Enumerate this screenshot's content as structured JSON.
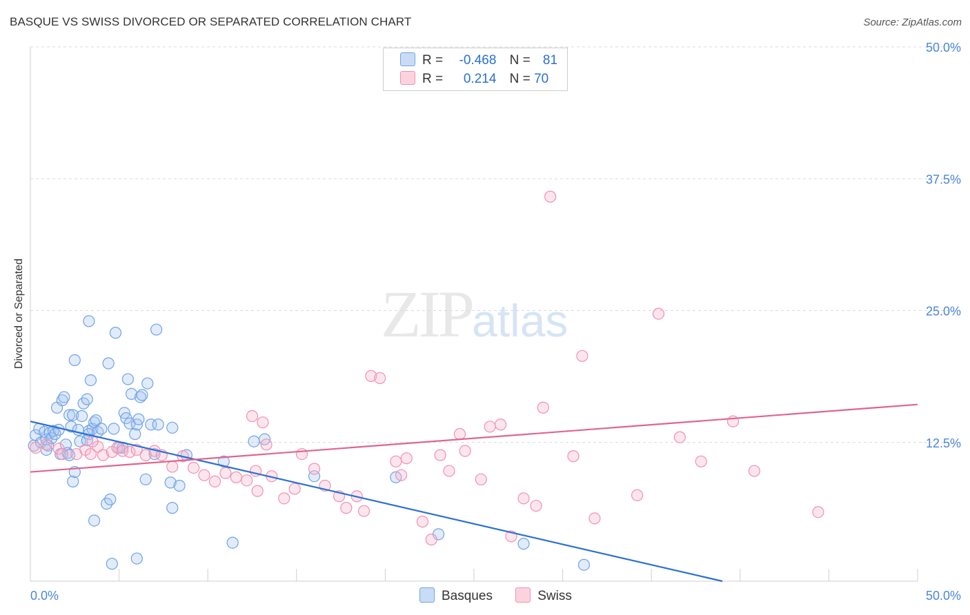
{
  "title": "BASQUE VS SWISS DIVORCED OR SEPARATED CORRELATION CHART",
  "source": "Source: ZipAtlas.com",
  "watermark": {
    "zip": "ZIP",
    "atlas": "atlas"
  },
  "legend": {
    "rows": [
      {
        "r_label": "R =",
        "r_value": "-0.468",
        "n_label": "N =",
        "n_value": "81",
        "color": "#a9c7f0"
      },
      {
        "r_label": "R =",
        "r_value": "0.214",
        "n_label": "N =",
        "n_value": "70",
        "color": "#f6b8cb"
      }
    ]
  },
  "bottom_legend": [
    {
      "label": "Basques",
      "color": "#a9c7f0"
    },
    {
      "label": "Swiss",
      "color": "#f6b8cb"
    }
  ],
  "chart_data": {
    "type": "scatter",
    "title": "BASQUE VS SWISS DIVORCED OR SEPARATED CORRELATION CHART",
    "xlabel": "",
    "ylabel": "Divorced or Separated",
    "xlim": [
      0,
      50
    ],
    "ylim": [
      0,
      50
    ],
    "x_tick_labels": [
      "0.0%",
      "50.0%"
    ],
    "y_tick_labels": [
      "12.5%",
      "25.0%",
      "37.5%",
      "50.0%"
    ],
    "y_ticks": [
      12.5,
      25.0,
      37.5,
      50.0
    ],
    "grid": true,
    "series": [
      {
        "name": "Basques",
        "color": "#6fa3e6",
        "line_color": "#2a6fd6",
        "trend": {
          "x": [
            0,
            39.0
          ],
          "y": [
            14.5,
            0
          ]
        },
        "points": [
          [
            0.2,
            12.2
          ],
          [
            0.3,
            13.2
          ],
          [
            0.5,
            13.8
          ],
          [
            0.6,
            12.5
          ],
          [
            0.8,
            13.5
          ],
          [
            0.9,
            12.8
          ],
          [
            1.0,
            12.2
          ],
          [
            1.1,
            13.4
          ],
          [
            1.2,
            12.9
          ],
          [
            1.3,
            13.6
          ],
          [
            1.4,
            13.3
          ],
          [
            1.5,
            15.8
          ],
          [
            1.6,
            13.7
          ],
          [
            1.7,
            11.4
          ],
          [
            1.8,
            16.5
          ],
          [
            1.9,
            16.8
          ],
          [
            2.0,
            12.3
          ],
          [
            2.1,
            11.5
          ],
          [
            2.2,
            15.1
          ],
          [
            2.3,
            14.0
          ],
          [
            2.2,
            11.3
          ],
          [
            2.4,
            15.1
          ],
          [
            2.5,
            20.3
          ],
          [
            2.4,
            8.8
          ],
          [
            2.5,
            9.7
          ],
          [
            2.7,
            13.7
          ],
          [
            2.8,
            12.6
          ],
          [
            2.9,
            15.0
          ],
          [
            3.0,
            16.2
          ],
          [
            3.2,
            16.6
          ],
          [
            3.3,
            13.6
          ],
          [
            3.4,
            18.4
          ],
          [
            3.5,
            13.8
          ],
          [
            3.6,
            14.4
          ],
          [
            3.3,
            24.0
          ],
          [
            3.7,
            14.6
          ],
          [
            3.3,
            13.3
          ],
          [
            3.2,
            12.7
          ],
          [
            3.6,
            5.1
          ],
          [
            3.8,
            13.5
          ],
          [
            4.3,
            6.7
          ],
          [
            4.4,
            20.0
          ],
          [
            4.0,
            13.8
          ],
          [
            4.5,
            7.1
          ],
          [
            4.7,
            13.8
          ],
          [
            4.8,
            22.9
          ],
          [
            5.0,
            12.0
          ],
          [
            4.6,
            1.0
          ],
          [
            5.3,
            15.3
          ],
          [
            5.4,
            14.8
          ],
          [
            5.2,
            12.0
          ],
          [
            5.5,
            18.5
          ],
          [
            5.6,
            14.3
          ],
          [
            5.7,
            17.1
          ],
          [
            5.9,
            13.3
          ],
          [
            6.0,
            14.2
          ],
          [
            6.1,
            14.7
          ],
          [
            6.2,
            16.8
          ],
          [
            6.3,
            17.0
          ],
          [
            6.5,
            9.0
          ],
          [
            6.6,
            18.1
          ],
          [
            6.8,
            14.2
          ],
          [
            7.0,
            11.4
          ],
          [
            7.2,
            14.2
          ],
          [
            7.1,
            23.2
          ],
          [
            7.9,
            8.7
          ],
          [
            8.0,
            6.3
          ],
          [
            8.0,
            13.9
          ],
          [
            8.4,
            8.4
          ],
          [
            8.8,
            11.3
          ],
          [
            10.9,
            10.7
          ],
          [
            11.4,
            3.0
          ],
          [
            12.6,
            12.6
          ],
          [
            13.2,
            12.8
          ],
          [
            16.0,
            9.3
          ],
          [
            20.6,
            9.2
          ],
          [
            23.0,
            3.8
          ],
          [
            27.8,
            2.9
          ],
          [
            31.2,
            0.9
          ],
          [
            6.0,
            1.5
          ],
          [
            0.9,
            11.8
          ]
        ]
      },
      {
        "name": "Swiss",
        "color": "#f190b0",
        "line_color": "#e0648e",
        "trend": {
          "x": [
            0,
            50
          ],
          "y": [
            9.7,
            16.1
          ]
        },
        "points": [
          [
            0.3,
            12.0
          ],
          [
            0.9,
            12.3
          ],
          [
            1.6,
            11.9
          ],
          [
            1.8,
            11.4
          ],
          [
            2.6,
            11.4
          ],
          [
            3.1,
            11.8
          ],
          [
            3.4,
            11.4
          ],
          [
            3.8,
            12.1
          ],
          [
            3.5,
            12.6
          ],
          [
            4.1,
            11.3
          ],
          [
            4.6,
            11.6
          ],
          [
            4.9,
            12.0
          ],
          [
            5.2,
            11.7
          ],
          [
            5.6,
            11.6
          ],
          [
            6.0,
            11.8
          ],
          [
            6.5,
            11.3
          ],
          [
            7.0,
            11.7
          ],
          [
            7.4,
            11.3
          ],
          [
            8.0,
            10.2
          ],
          [
            8.6,
            11.2
          ],
          [
            9.2,
            10.1
          ],
          [
            9.8,
            9.4
          ],
          [
            10.4,
            8.8
          ],
          [
            11.0,
            9.6
          ],
          [
            11.6,
            9.2
          ],
          [
            12.2,
            8.9
          ],
          [
            12.8,
            7.9
          ],
          [
            13.3,
            12.3
          ],
          [
            12.5,
            15.0
          ],
          [
            13.1,
            14.4
          ],
          [
            12.7,
            9.8
          ],
          [
            13.6,
            9.3
          ],
          [
            14.3,
            7.2
          ],
          [
            14.9,
            8.1
          ],
          [
            15.3,
            11.4
          ],
          [
            16.0,
            10.0
          ],
          [
            16.6,
            8.4
          ],
          [
            17.4,
            7.4
          ],
          [
            17.8,
            6.3
          ],
          [
            18.4,
            7.4
          ],
          [
            18.8,
            6.0
          ],
          [
            19.2,
            18.8
          ],
          [
            19.7,
            18.6
          ],
          [
            20.6,
            10.7
          ],
          [
            20.9,
            9.4
          ],
          [
            21.2,
            11.0
          ],
          [
            22.1,
            5.0
          ],
          [
            22.6,
            3.3
          ],
          [
            23.1,
            11.3
          ],
          [
            23.6,
            9.8
          ],
          [
            24.2,
            13.3
          ],
          [
            24.5,
            11.7
          ],
          [
            25.4,
            9.0
          ],
          [
            25.9,
            14.0
          ],
          [
            26.5,
            14.2
          ],
          [
            27.1,
            3.6
          ],
          [
            27.8,
            7.2
          ],
          [
            28.5,
            6.5
          ],
          [
            28.9,
            15.8
          ],
          [
            29.3,
            35.8
          ],
          [
            30.6,
            11.2
          ],
          [
            31.1,
            20.7
          ],
          [
            31.8,
            5.3
          ],
          [
            34.2,
            7.5
          ],
          [
            35.4,
            24.7
          ],
          [
            36.6,
            13.0
          ],
          [
            37.8,
            10.7
          ],
          [
            39.6,
            14.5
          ],
          [
            40.8,
            9.8
          ],
          [
            44.4,
            5.9
          ]
        ]
      }
    ]
  }
}
